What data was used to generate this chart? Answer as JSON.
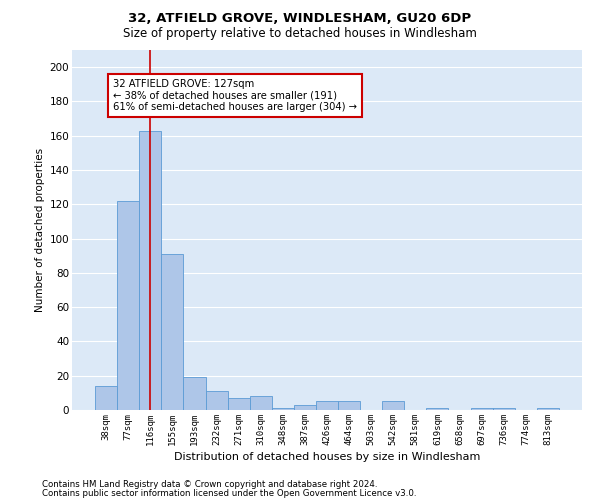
{
  "title1": "32, ATFIELD GROVE, WINDLESHAM, GU20 6DP",
  "title2": "Size of property relative to detached houses in Windlesham",
  "xlabel": "Distribution of detached houses by size in Windlesham",
  "ylabel": "Number of detached properties",
  "categories": [
    "38sqm",
    "77sqm",
    "116sqm",
    "155sqm",
    "193sqm",
    "232sqm",
    "271sqm",
    "310sqm",
    "348sqm",
    "387sqm",
    "426sqm",
    "464sqm",
    "503sqm",
    "542sqm",
    "581sqm",
    "619sqm",
    "658sqm",
    "697sqm",
    "736sqm",
    "774sqm",
    "813sqm"
  ],
  "values": [
    14,
    122,
    163,
    91,
    19,
    11,
    7,
    8,
    1,
    3,
    5,
    5,
    0,
    5,
    0,
    1,
    0,
    1,
    1,
    0,
    1
  ],
  "bar_color": "#aec6e8",
  "bar_edge_color": "#5b9bd5",
  "bg_color": "#dce9f7",
  "grid_color": "#ffffff",
  "vline_x": 2,
  "vline_color": "#cc0000",
  "annotation_text": "32 ATFIELD GROVE: 127sqm\n← 38% of detached houses are smaller (191)\n61% of semi-detached houses are larger (304) →",
  "annotation_box_color": "#cc0000",
  "ylim": [
    0,
    210
  ],
  "yticks": [
    0,
    20,
    40,
    60,
    80,
    100,
    120,
    140,
    160,
    180,
    200
  ],
  "footnote1": "Contains HM Land Registry data © Crown copyright and database right 2024.",
  "footnote2": "Contains public sector information licensed under the Open Government Licence v3.0."
}
